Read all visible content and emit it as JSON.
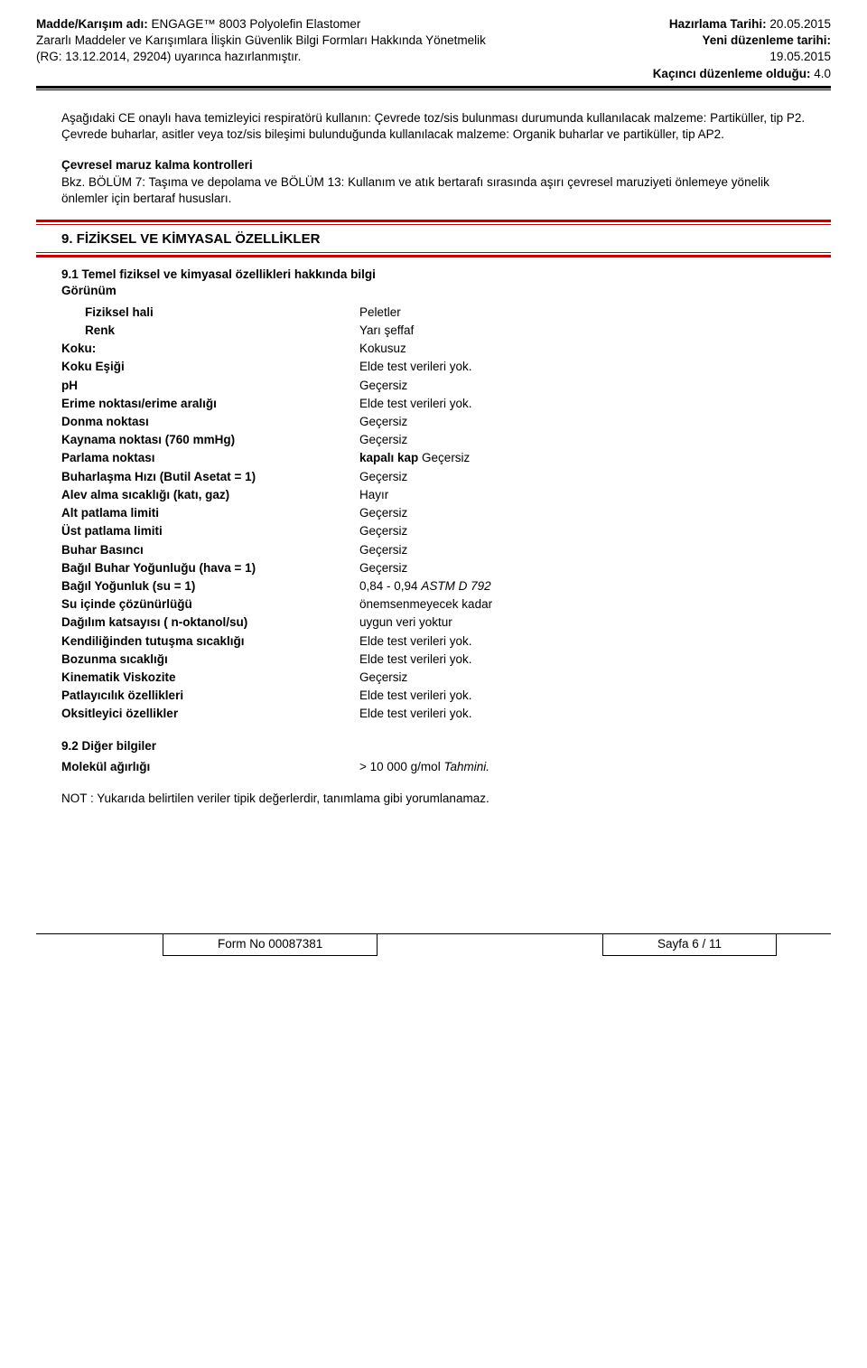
{
  "header": {
    "left1_label": "Madde/Karışım adı:",
    "left1_value": " ENGAGE™ 8003 Polyolefin Elastomer",
    "left2": "Zararlı Maddeler ve Karışımlara İlişkin Güvenlik Bilgi Formları Hakkında Yönetmelik",
    "left3": "(RG: 13.12.2014, 29204) uyarınca hazırlanmıştır.",
    "right1_label": "Hazırlama Tarihi:",
    "right1_value": " 20.05.2015",
    "right2_label": "Yeni düzenleme tarihi:",
    "right3": "19.05.2015",
    "right4_label": "Kaçıncı düzenleme olduğu:",
    "right4_value": " 4.0"
  },
  "body": {
    "p1": "Aşağıdaki CE onaylı hava temizleyici respiratörü kullanın:  Çevrede toz/sis bulunması durumunda kullanılacak malzeme:  Partiküller, tip P2.  Çevrede buharlar, asitler veya toz/sis bileşimi bulunduğunda kullanılacak malzeme:  Organik buharlar ve partiküller, tip AP2.",
    "h1": "Çevresel maruz kalma kontrolleri",
    "p2": "Bkz. BÖLÜM 7: Taşıma ve depolama ve BÖLÜM 13: Kullanım ve atık bertarafı sırasında aşırı çevresel maruziyeti önlemeye yönelik önlemler için bertaraf hususları."
  },
  "section9": {
    "title": "9. FİZİKSEL VE KİMYASAL ÖZELLİKLER",
    "sub1": "9.1 Temel fiziksel ve kimyasal özellikleri hakkında bilgi",
    "appearance": "Görünüm",
    "rows": [
      {
        "label": "Fiziksel hali",
        "value": "Peletler",
        "indent": true
      },
      {
        "label": "Renk",
        "value": "Yarı şeffaf",
        "indent": true
      },
      {
        "label": "Koku:",
        "value": "Kokusuz"
      },
      {
        "label": "Koku Eşiği",
        "value": "Elde test verileri yok."
      },
      {
        "label": "pH",
        "value": "Geçersiz"
      },
      {
        "label": "Erime noktası/erime aralığı",
        "value": "Elde test verileri yok."
      },
      {
        "label": "Donma noktası",
        "value": "Geçersiz"
      },
      {
        "label": "Kaynama noktası (760 mmHg)",
        "value": "Geçersiz"
      },
      {
        "label": "Parlama noktası",
        "value_bold": "kapalı kap ",
        "value_rest": "Geçersiz"
      },
      {
        "label": "Buharlaşma Hızı (Butil Asetat = 1)",
        "value": "Geçersiz"
      },
      {
        "label": "Alev alma sıcaklığı (katı, gaz)",
        "value": "Hayır"
      },
      {
        "label": "Alt patlama limiti",
        "value": "Geçersiz"
      },
      {
        "label": "Üst patlama limiti",
        "value": "Geçersiz"
      },
      {
        "label": "Buhar Basıncı",
        "value": " Geçersiz"
      },
      {
        "label": "Bağıl Buhar Yoğunluğu (hava = 1)",
        "value": "Geçersiz"
      },
      {
        "label": "Bağıl Yoğunluk (su = 1)",
        "value_plain": "0,84 - 0,94 ",
        "value_italic": "ASTM D 792"
      },
      {
        "label": "Su içinde çözünürlüğü",
        "value": "önemsenmeyecek kadar"
      },
      {
        "label": "Dağılım katsayısı ( n-oktanol/su)",
        "value": "uygun veri yoktur"
      },
      {
        "label": "Kendiliğinden tutuşma sıcaklığı",
        "value": "Elde test verileri yok."
      },
      {
        "label": "Bozunma sıcaklığı",
        "value": "Elde test verileri yok."
      },
      {
        "label": "Kinematik Viskozite",
        "value": "Geçersiz"
      },
      {
        "label": "Patlayıcılık özellikleri",
        "value": "Elde test verileri yok."
      },
      {
        "label": "Oksitleyici özellikler",
        "value": "Elde test verileri yok."
      }
    ],
    "sub2": "9.2 Diğer bilgiler",
    "mw_label": "Molekül ağırlığı",
    "mw_value_plain": "> 10 000 g/mol  ",
    "mw_value_italic": "Tahmini.",
    "note": "NOT : Yukarıda belirtilen veriler tipik değerlerdir, tanımlama gibi yorumlanamaz."
  },
  "footer": {
    "form": "Form No 00087381",
    "page": "Sayfa 6 / 11"
  }
}
